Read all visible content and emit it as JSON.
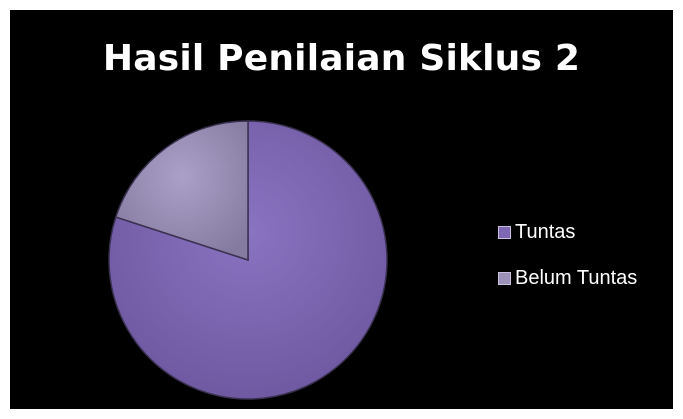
{
  "chart_data": {
    "type": "pie",
    "title": "Hasil Penilaian Siklus 2",
    "legend_position": "right",
    "categories": [
      "Tuntas",
      "Belum Tuntas"
    ],
    "values": [
      80,
      20
    ],
    "colors": [
      "#7e68b4",
      "#9c91b8"
    ],
    "start_angle_deg": 0
  }
}
